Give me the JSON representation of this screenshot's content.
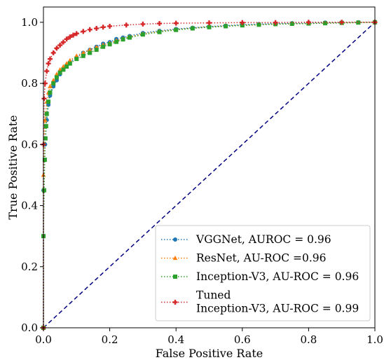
{
  "chart_data": {
    "type": "line",
    "title": "",
    "xlabel": "False Positive Rate",
    "ylabel": "True Positive Rate",
    "xlim": [
      0,
      1
    ],
    "ylim": [
      0,
      1.05
    ],
    "xticks": [
      "0.0",
      "0.2",
      "0.4",
      "0.6",
      "0.8",
      "1.0"
    ],
    "yticks": [
      "0.0",
      "0.2",
      "0.4",
      "0.6",
      "0.8",
      "1.0"
    ],
    "grid": false,
    "legend_position": "lower-right",
    "diagonal": {
      "style": "dashed",
      "color": "#000080",
      "from": [
        0,
        0
      ],
      "to": [
        1,
        1
      ]
    },
    "series": [
      {
        "name": "VGGNet, AUROC = 0.96",
        "color": "#1f77b4",
        "marker": "circle",
        "x": [
          0,
          0,
          0.005,
          0.01,
          0.015,
          0.02,
          0.03,
          0.04,
          0.05,
          0.06,
          0.07,
          0.08,
          0.1,
          0.12,
          0.14,
          0.16,
          0.18,
          0.2,
          0.22,
          0.24,
          0.26,
          0.3,
          0.35,
          0.4,
          0.45,
          0.5,
          0.55,
          0.6,
          0.65,
          0.7,
          0.75,
          0.8,
          0.85,
          0.9,
          0.95,
          1.0
        ],
        "y": [
          0,
          0.45,
          0.6,
          0.68,
          0.73,
          0.76,
          0.79,
          0.81,
          0.83,
          0.845,
          0.86,
          0.87,
          0.885,
          0.9,
          0.91,
          0.92,
          0.93,
          0.935,
          0.945,
          0.95,
          0.955,
          0.965,
          0.972,
          0.978,
          0.982,
          0.986,
          0.989,
          0.992,
          0.994,
          0.996,
          0.997,
          0.998,
          0.999,
          0.999,
          1.0,
          1.0
        ]
      },
      {
        "name": "ResNet, AU-ROC =0.96",
        "color": "#ff7f0e",
        "marker": "triangle",
        "x": [
          0,
          0,
          0.005,
          0.01,
          0.015,
          0.02,
          0.03,
          0.04,
          0.05,
          0.06,
          0.07,
          0.08,
          0.1,
          0.12,
          0.14,
          0.16,
          0.18,
          0.2,
          0.22,
          0.24,
          0.26,
          0.3,
          0.35,
          0.4,
          0.45,
          0.5,
          0.55,
          0.6,
          0.65,
          0.7,
          0.75,
          0.8,
          0.85,
          0.9,
          0.95,
          1.0
        ],
        "y": [
          0,
          0.5,
          0.68,
          0.74,
          0.77,
          0.79,
          0.81,
          0.83,
          0.845,
          0.855,
          0.865,
          0.875,
          0.89,
          0.9,
          0.91,
          0.918,
          0.926,
          0.932,
          0.94,
          0.946,
          0.952,
          0.962,
          0.97,
          0.976,
          0.981,
          0.985,
          0.988,
          0.99,
          0.992,
          0.994,
          0.995,
          0.996,
          0.997,
          0.998,
          0.999,
          1.0
        ]
      },
      {
        "name": "Inception-V3, AU-ROC = 0.96",
        "color": "#2ca02c",
        "marker": "square",
        "x": [
          0,
          0,
          0.002,
          0.004,
          0.006,
          0.008,
          0.01,
          0.015,
          0.02,
          0.03,
          0.04,
          0.05,
          0.06,
          0.07,
          0.08,
          0.1,
          0.12,
          0.14,
          0.16,
          0.18,
          0.2,
          0.22,
          0.24,
          0.26,
          0.3,
          0.35,
          0.4,
          0.45,
          0.5,
          0.55,
          0.6,
          0.65,
          0.7,
          0.75,
          0.8,
          0.85,
          0.9,
          0.95,
          1.0
        ],
        "y": [
          0,
          0.3,
          0.45,
          0.55,
          0.62,
          0.66,
          0.7,
          0.74,
          0.77,
          0.8,
          0.82,
          0.835,
          0.845,
          0.855,
          0.865,
          0.88,
          0.89,
          0.9,
          0.91,
          0.92,
          0.928,
          0.936,
          0.944,
          0.95,
          0.96,
          0.968,
          0.975,
          0.98,
          0.984,
          0.987,
          0.99,
          0.992,
          0.994,
          0.995,
          0.996,
          0.997,
          0.998,
          0.999,
          1.0
        ]
      },
      {
        "name": "Tuned\nInception-V3, AU-ROC = 0.99",
        "color": "#d62728",
        "marker": "plus",
        "x": [
          0,
          0,
          0.002,
          0.005,
          0.01,
          0.015,
          0.02,
          0.03,
          0.04,
          0.05,
          0.06,
          0.07,
          0.08,
          0.09,
          0.1,
          0.12,
          0.14,
          0.16,
          0.18,
          0.2,
          0.25,
          0.3,
          0.35,
          0.4,
          0.5,
          0.6,
          0.7,
          0.8,
          0.9,
          1.0
        ],
        "y": [
          0,
          0.6,
          0.75,
          0.8,
          0.84,
          0.865,
          0.88,
          0.9,
          0.915,
          0.925,
          0.935,
          0.945,
          0.952,
          0.958,
          0.963,
          0.97,
          0.976,
          0.98,
          0.984,
          0.987,
          0.991,
          0.994,
          0.996,
          0.997,
          0.998,
          0.999,
          0.999,
          1.0,
          1.0,
          1.0
        ]
      }
    ]
  }
}
